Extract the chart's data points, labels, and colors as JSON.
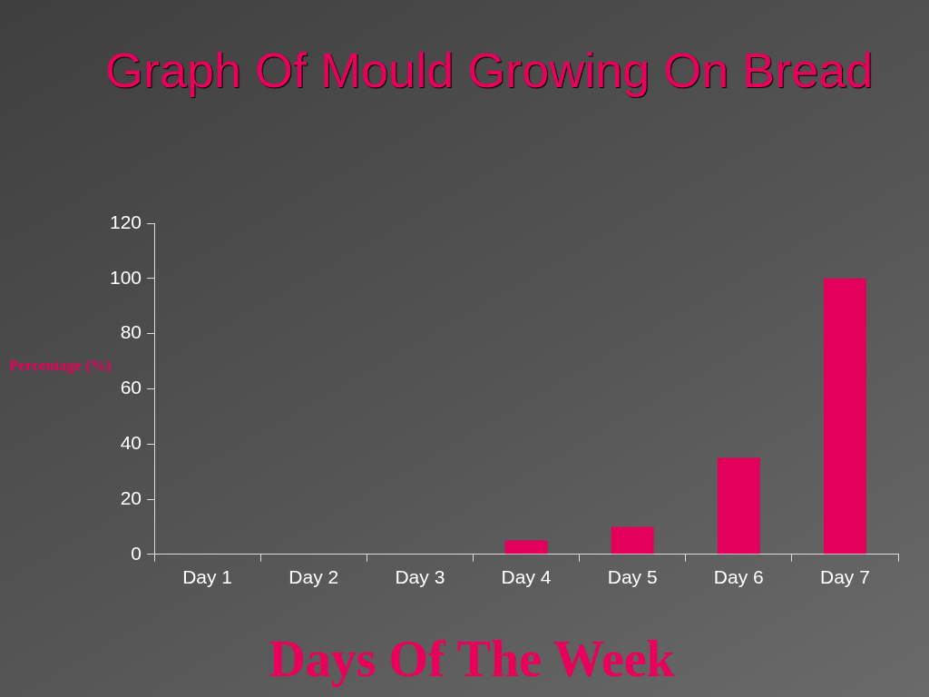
{
  "chart_data": {
    "type": "bar",
    "title": "Graph Of Mould Growing On Bread",
    "xlabel": "Days Of The Week",
    "ylabel": "Percentage (%)",
    "categories": [
      "Day 1",
      "Day 2",
      "Day 3",
      "Day 4",
      "Day 5",
      "Day 6",
      "Day 7"
    ],
    "values": [
      0,
      0,
      0,
      5,
      10,
      35,
      100
    ],
    "color": "#e2005a",
    "ylim": [
      0,
      120
    ],
    "yticks": [
      0,
      20,
      40,
      60,
      80,
      100,
      120
    ],
    "grid": false,
    "legend": false
  }
}
